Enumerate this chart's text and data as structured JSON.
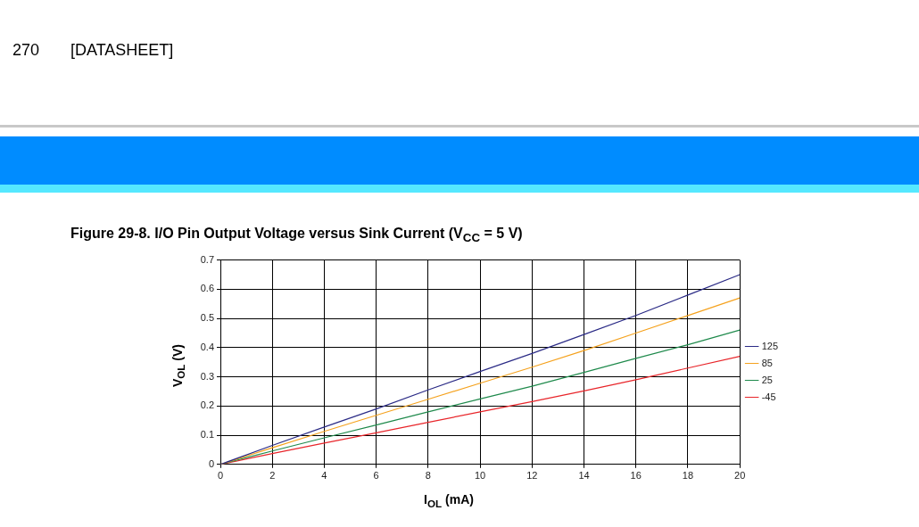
{
  "chart_data": {
    "type": "line",
    "title": "Figure 29-8. I/O Pin Output Voltage versus Sink Current (V$_{CC}$ = 5 V)",
    "xlabel": "I$_{OL}$ (mA)",
    "ylabel": "V$_{OL}$ (V)",
    "annotations": [
      "270",
      "[DATASHEET]"
    ],
    "x": [
      0,
      2,
      4,
      6,
      8,
      10,
      12,
      14,
      16,
      18,
      20
    ],
    "series": [
      {
        "name": "125",
        "color": "#2b2b86",
        "values": [
          0,
          0.065,
          0.128,
          0.19,
          0.255,
          0.318,
          0.38,
          0.445,
          0.51,
          0.58,
          0.65
        ]
      },
      {
        "name": "85",
        "color": "#f5a21e",
        "values": [
          0,
          0.057,
          0.113,
          0.168,
          0.223,
          0.278,
          0.333,
          0.39,
          0.45,
          0.51,
          0.57
        ]
      },
      {
        "name": "25",
        "color": "#1f8a4c",
        "values": [
          0,
          0.046,
          0.091,
          0.135,
          0.18,
          0.224,
          0.268,
          0.315,
          0.363,
          0.41,
          0.46
        ]
      },
      {
        "name": "-45",
        "color": "#e8252a",
        "values": [
          0,
          0.037,
          0.073,
          0.108,
          0.144,
          0.18,
          0.215,
          0.252,
          0.29,
          0.33,
          0.37
        ]
      }
    ],
    "xlim": [
      0,
      20
    ],
    "xticks": [
      0,
      2,
      4,
      6,
      8,
      10,
      12,
      14,
      16,
      18,
      20
    ],
    "ylim": [
      0,
      0.7
    ],
    "yticks": [
      0,
      0.1,
      0.2,
      0.3,
      0.4,
      0.5,
      0.6,
      0.7
    ],
    "grid": true,
    "legend": "right",
    "marker": "none",
    "line_style": "solid"
  }
}
